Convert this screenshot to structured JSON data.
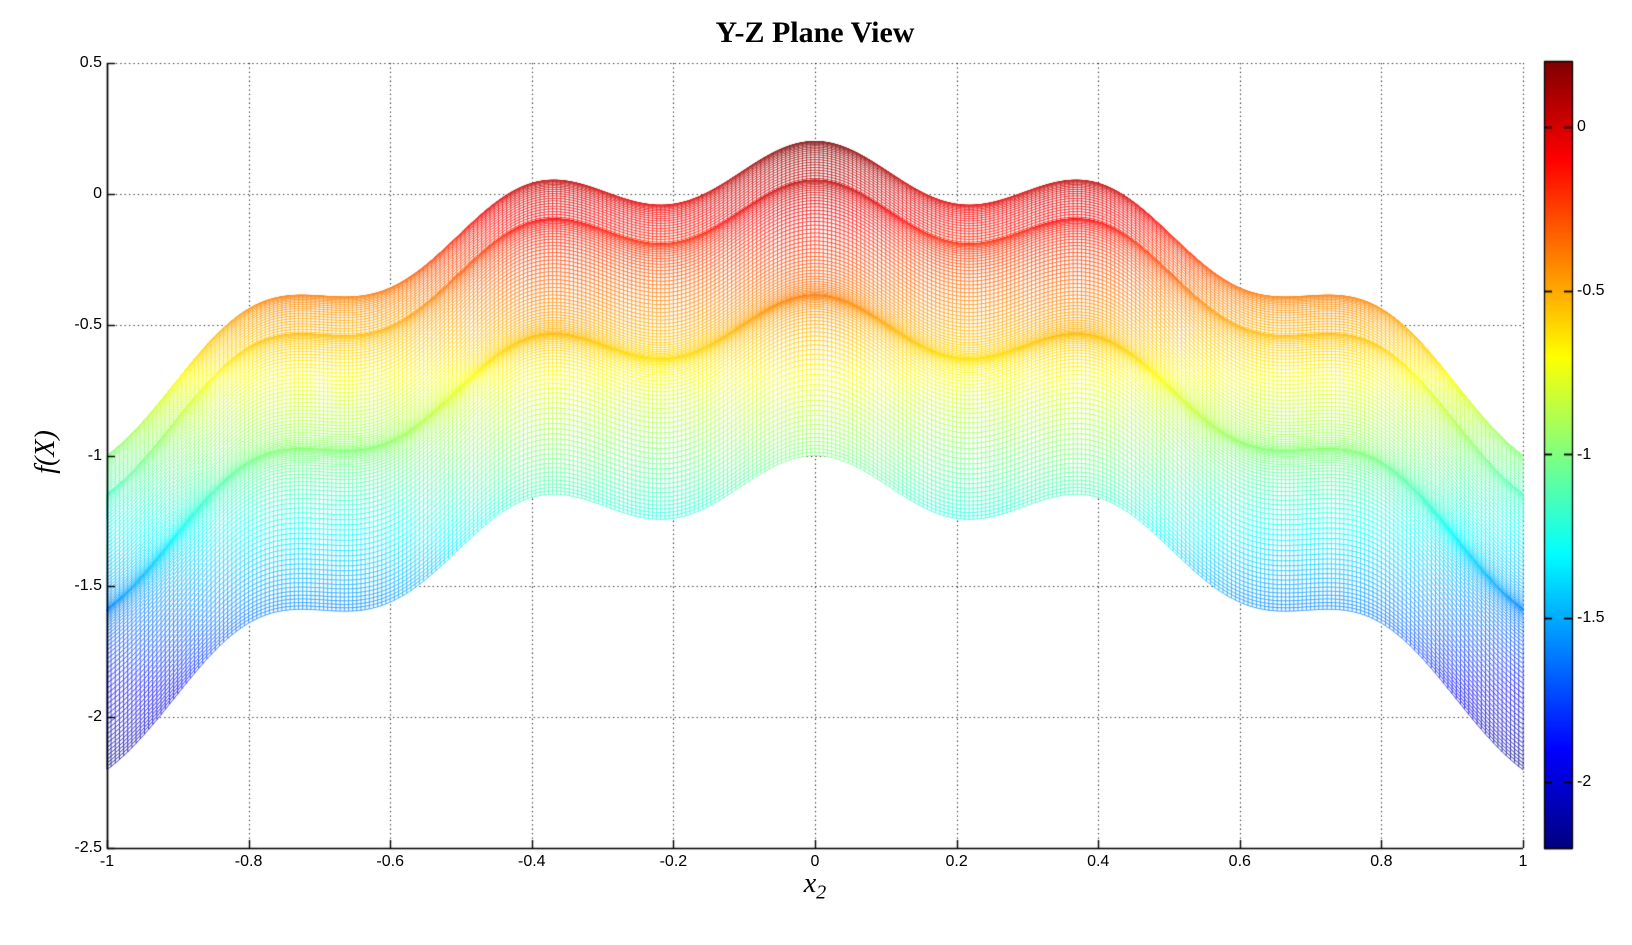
{
  "figure": {
    "background": "#ffffff",
    "kind": "MATLAB-style 3D mesh surface shown as orthographic Y-Z side projection"
  },
  "chart_data": {
    "type": "surface-mesh-projection",
    "title": "Y-Z Plane View",
    "xlabel": {
      "base": "x",
      "sub": "2"
    },
    "ylabel": "f(X)",
    "surface": {
      "function": "f(x1,x2) = 0.1*cos(5*pi*x1) + 0.1*cos(5*pi*x2) - x1^2 - x2^2",
      "cos_amplitude": 0.1,
      "cos_omega_pi_multiple": 5,
      "domain_x1": [
        -1,
        1
      ],
      "domain_x2": [
        -1,
        1
      ],
      "mesh_divisions": 340,
      "f_max": 0.2,
      "f_max_at": [
        0,
        0
      ],
      "f_min": -2.2,
      "f_min_at": "corners (±1, ±1)",
      "projection": "viewed along x1 axis: horizontal = x2, vertical = f(X)",
      "top_envelope": "0.1 + 0.1*cos(5*pi*x2) - x2^2",
      "bottom_envelope": "-1.1 + 0.1*cos(5*pi*x2) - x2^2"
    },
    "x_axis": {
      "lim": [
        -1,
        1
      ],
      "ticks": [
        -1,
        -0.8,
        -0.6,
        -0.4,
        -0.2,
        0,
        0.2,
        0.4,
        0.6,
        0.8,
        1
      ],
      "tick_labels": [
        "-1",
        "-0.8",
        "-0.6",
        "-0.4",
        "-0.2",
        "0",
        "0.2",
        "0.4",
        "0.6",
        "0.8",
        "1"
      ]
    },
    "y_axis": {
      "lim": [
        -2.5,
        0.5
      ],
      "ticks": [
        0.5,
        0,
        -0.5,
        -1,
        -1.5,
        -2,
        -2.5
      ],
      "tick_labels": [
        "0.5",
        "0",
        "-0.5",
        "-1",
        "-1.5",
        "-2",
        "-2.5"
      ]
    },
    "grid": {
      "on": true,
      "style": "dotted",
      "color": "#000000"
    },
    "colormap": "jet",
    "axis_color": "#000000",
    "colorbar": {
      "clim": [
        -2.2,
        0.2
      ],
      "ticks": [
        0,
        -0.5,
        -1,
        -1.5,
        -2
      ],
      "tick_labels": [
        "0",
        "-0.5",
        "-1",
        "-1.5",
        "-2"
      ],
      "top_color": "#800000",
      "bottom_color": "#00008f"
    }
  }
}
